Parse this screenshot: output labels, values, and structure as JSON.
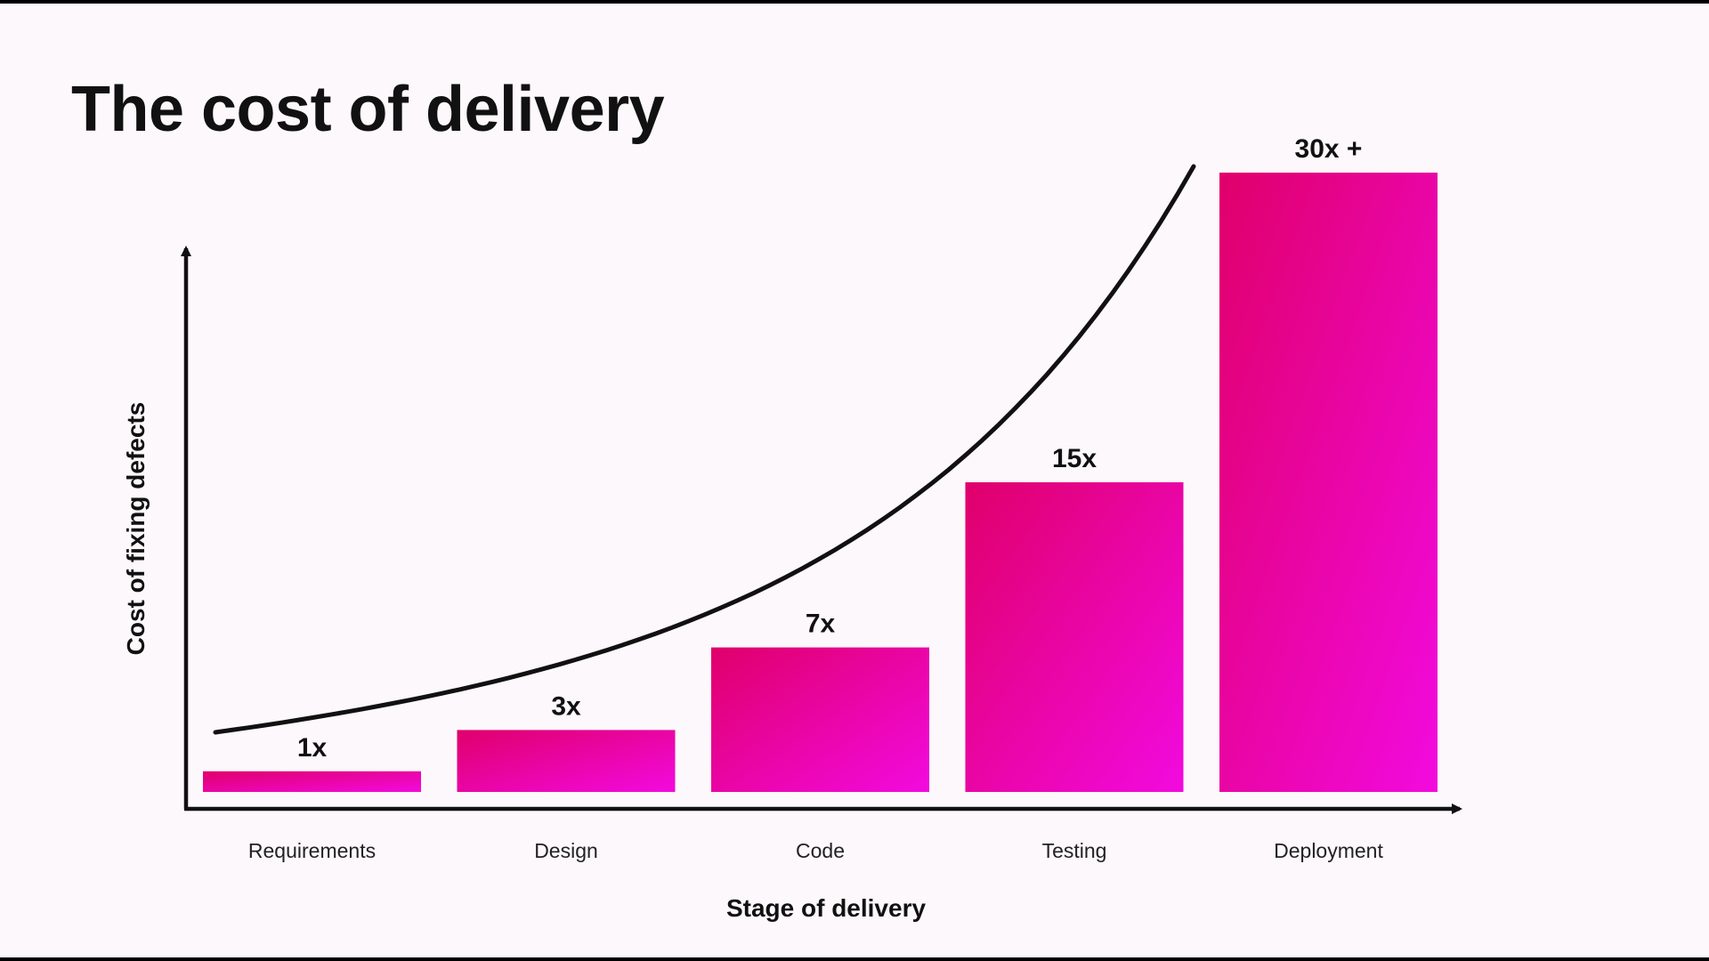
{
  "slide": {
    "title": "The cost of delivery"
  },
  "chart_data": {
    "type": "bar",
    "title": "The cost of delivery",
    "xlabel": "Stage of delivery",
    "ylabel": "Cost of fixing defects",
    "categories": [
      "Requirements",
      "Design",
      "Code",
      "Testing",
      "Deployment"
    ],
    "values": [
      1,
      3,
      7,
      15,
      30
    ],
    "value_labels": [
      "1x",
      "3x",
      "7x",
      "15x",
      "30x +"
    ],
    "trend_curve": true,
    "grid": false,
    "legend": "none",
    "bar_color_start": "#e0006a",
    "bar_color_end": "#f20adf",
    "axis_color": "#111111"
  }
}
